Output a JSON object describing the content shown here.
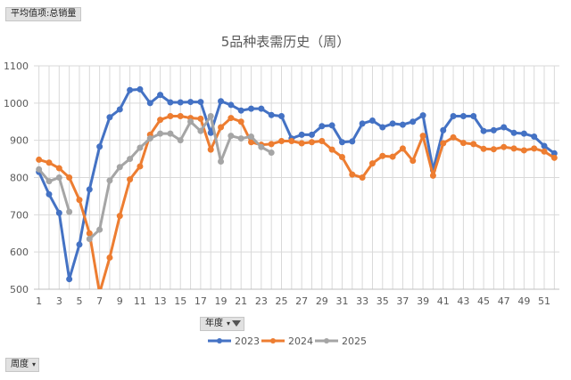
{
  "pivot": {
    "value_field": "平均值项:总销量",
    "legend_field": "年度",
    "axis_field": "周度"
  },
  "chart_data": {
    "type": "line",
    "title": "5品种表需历史（周）",
    "xlabel": "",
    "ylabel": "",
    "ylim": [
      500,
      1100
    ],
    "yticks": [
      500,
      600,
      700,
      800,
      900,
      1000,
      1100
    ],
    "xlim": [
      1,
      53
    ],
    "xticks": [
      1,
      3,
      5,
      7,
      9,
      11,
      13,
      15,
      17,
      19,
      21,
      23,
      25,
      27,
      29,
      31,
      33,
      35,
      37,
      39,
      41,
      43,
      45,
      47,
      49,
      51
    ],
    "grid": true,
    "legend_position": "bottom",
    "series": [
      {
        "name": "2023",
        "color": "#4472c4",
        "x": [
          1,
          2,
          3,
          4,
          5,
          6,
          7,
          8,
          9,
          10,
          11,
          12,
          13,
          14,
          15,
          16,
          17,
          18,
          19,
          20,
          21,
          22,
          23,
          24,
          25,
          26,
          27,
          28,
          29,
          30,
          31,
          32,
          33,
          34,
          35,
          36,
          37,
          38,
          39,
          40,
          41,
          42,
          43,
          44,
          45,
          46,
          47,
          48,
          49,
          50,
          51,
          52
        ],
        "values": [
          815,
          755,
          705,
          527,
          620,
          768,
          883,
          962,
          983,
          1035,
          1037,
          1000,
          1022,
          1002,
          1002,
          1003,
          1003,
          920,
          1005,
          995,
          980,
          985,
          985,
          968,
          965,
          905,
          915,
          915,
          938,
          940,
          895,
          897,
          945,
          953,
          935,
          945,
          942,
          950,
          967,
          820,
          927,
          965,
          965,
          965,
          925,
          927,
          935,
          920,
          918,
          910,
          885,
          865
        ]
      },
      {
        "name": "2024",
        "color": "#ed7d31",
        "x": [
          1,
          2,
          3,
          4,
          5,
          6,
          7,
          8,
          9,
          10,
          11,
          12,
          13,
          14,
          15,
          16,
          17,
          18,
          19,
          20,
          21,
          22,
          23,
          24,
          25,
          26,
          27,
          28,
          29,
          30,
          31,
          32,
          33,
          34,
          35,
          36,
          37,
          38,
          39,
          40,
          41,
          42,
          43,
          44,
          45,
          46,
          47,
          48,
          49,
          50,
          51,
          52
        ],
        "values": [
          848,
          840,
          825,
          800,
          740,
          650,
          490,
          585,
          697,
          795,
          830,
          915,
          955,
          965,
          965,
          960,
          958,
          875,
          935,
          960,
          950,
          895,
          888,
          890,
          898,
          898,
          892,
          895,
          898,
          875,
          855,
          808,
          800,
          838,
          858,
          856,
          878,
          845,
          912,
          805,
          892,
          908,
          893,
          890,
          877,
          876,
          882,
          878,
          873,
          878,
          870,
          853
        ]
      },
      {
        "name": "2025",
        "color": "#a5a5a5",
        "x": [
          1,
          2,
          3,
          4,
          5,
          6,
          7,
          8,
          9,
          10,
          11,
          12,
          13,
          14,
          15,
          16,
          17,
          18,
          19,
          20,
          21,
          22,
          23,
          24
        ],
        "values": [
          822,
          790,
          800,
          708,
          null,
          635,
          660,
          792,
          828,
          850,
          880,
          905,
          918,
          918,
          900,
          950,
          925,
          965,
          843,
          912,
          905,
          910,
          882,
          867
        ]
      }
    ]
  }
}
